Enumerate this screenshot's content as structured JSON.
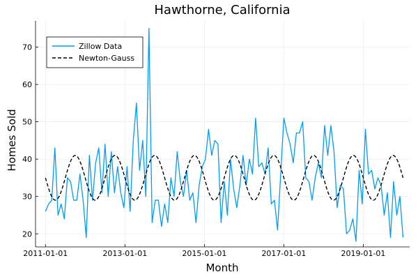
{
  "chart_data": {
    "type": "line",
    "title": "Hawthorne, California",
    "xlabel": "Month",
    "ylabel": "Homes Sold",
    "x_ticks": [
      "2011-01-01",
      "2013-01-01",
      "2015-01-01",
      "2017-01-01",
      "2019-01-01"
    ],
    "y_ticks": [
      20,
      30,
      40,
      50,
      60,
      70
    ],
    "xlim": [
      "2010-10-01",
      "2020-03-01"
    ],
    "ylim": [
      16.5,
      77
    ],
    "grid": true,
    "legend_position": "top-left",
    "series": [
      {
        "name": "Zillow Data",
        "color": "#009AFA",
        "style": "solid",
        "x_start": "2011-01",
        "x_step": "1 month",
        "values": [
          26,
          28,
          29,
          43,
          25,
          28,
          24,
          35,
          34,
          29,
          29,
          36,
          29,
          19,
          41,
          29,
          39,
          43,
          31,
          44,
          30,
          42,
          31,
          38,
          31,
          27,
          38,
          26,
          45,
          55,
          37,
          45,
          30,
          75,
          23,
          29,
          29,
          22,
          28,
          23,
          35,
          30,
          42,
          34,
          30,
          37,
          29,
          31,
          23,
          33,
          38,
          40,
          48,
          41,
          45,
          44,
          23,
          34,
          25,
          40,
          32,
          27,
          33,
          41,
          33,
          40,
          36,
          51,
          38,
          39,
          36,
          43,
          28,
          29,
          21,
          36,
          51,
          47,
          44,
          39,
          47,
          47,
          50,
          35,
          34,
          29,
          35,
          39,
          35,
          49,
          41,
          49,
          42,
          27,
          33,
          32,
          20,
          21,
          24,
          18,
          37,
          28,
          48,
          36,
          37,
          32,
          35,
          33,
          25,
          31,
          19
        ],
        "tail": [
          34,
          25,
          30,
          19
        ]
      },
      {
        "name": "Newton-Gauss",
        "color": "#000000",
        "style": "dashed",
        "model": "sinusoid",
        "mean": 35,
        "amplitude": 6,
        "period_months": 12,
        "peak_month": 9,
        "x_start": "2011-01",
        "x_end": "2020-01"
      }
    ]
  }
}
